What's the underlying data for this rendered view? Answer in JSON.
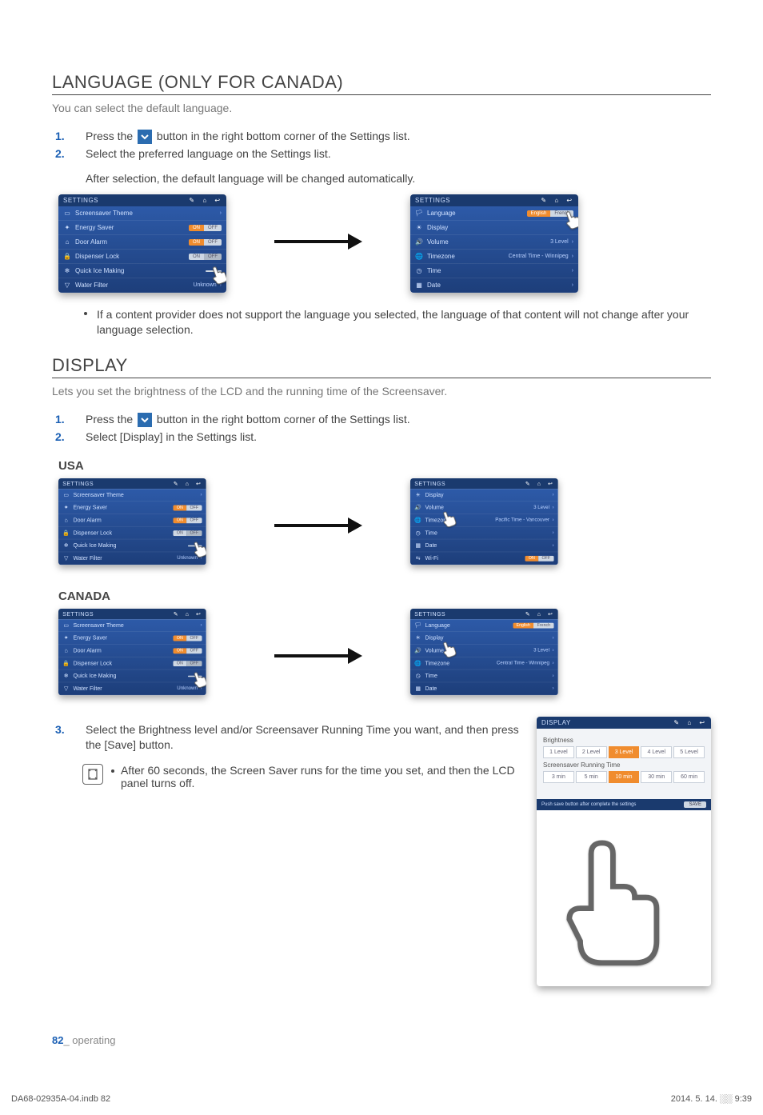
{
  "section1": {
    "title": "LANGUAGE (ONLY FOR CANADA)",
    "intro": "You can select the default language.",
    "step1_pre": "Press the",
    "step1_post": "button in the right bottom corner of the Settings list.",
    "step2": "Select the preferred language on the Settings list.",
    "step2_sub": "After selection, the default language will be changed automatically.",
    "note": "If a content provider does not support the language you selected, the language of that content will not change after your language selection."
  },
  "section2": {
    "title": "DISPLAY",
    "intro": "Lets you set the brightness of the LCD and the running time of the Screensaver.",
    "step1_pre": "Press the",
    "step1_post": "button in the right bottom corner of the Settings list.",
    "step2": "Select [Display] in the Settings list.",
    "region_usa": "USA",
    "region_canada": "CANADA",
    "step3": "Select the Brightness level and/or Screensaver Running Time you want, and then press the [Save] button.",
    "note3": "After 60 seconds, the Screen Saver runs for the time you set, and then the LCD panel turns off."
  },
  "panel_settings_a": {
    "title": "SETTINGS",
    "rows": [
      {
        "icon": "▭",
        "label": "Screensaver Theme",
        "control": "chev"
      },
      {
        "icon": "✦",
        "label": "Energy Saver",
        "control": "toggle_on"
      },
      {
        "icon": "⌂",
        "label": "Door Alarm",
        "control": "toggle_on"
      },
      {
        "icon": "🔒",
        "label": "Dispenser Lock",
        "control": "toggle_off"
      },
      {
        "icon": "❄",
        "label": "Quick Ice Making",
        "control": "toggle_blank"
      },
      {
        "icon": "▽",
        "label": "Water Filter",
        "control": "value",
        "value": "Unknown"
      }
    ]
  },
  "panel_settings_b": {
    "title": "SETTINGS",
    "rows": [
      {
        "icon": "🏳",
        "label": "Language",
        "control": "lang"
      },
      {
        "icon": "☀",
        "label": "Display",
        "control": "chev"
      },
      {
        "icon": "🔊",
        "label": "Volume",
        "control": "value",
        "value": "3 Level"
      },
      {
        "icon": "🌐",
        "label": "Timezone",
        "control": "value",
        "value": "Central Time - Winnipeg"
      },
      {
        "icon": "◷",
        "label": "Time",
        "control": "chev"
      },
      {
        "icon": "▦",
        "label": "Date",
        "control": "chev"
      }
    ]
  },
  "panel_settings_c": {
    "title": "SETTINGS",
    "rows": [
      {
        "icon": "☀",
        "label": "Display",
        "control": "chev"
      },
      {
        "icon": "🔊",
        "label": "Volume",
        "control": "value",
        "value": "3 Level"
      },
      {
        "icon": "🌐",
        "label": "Timezone",
        "control": "value",
        "value": "Pacific Time - Vancouver"
      },
      {
        "icon": "◷",
        "label": "Time",
        "control": "chev"
      },
      {
        "icon": "▦",
        "label": "Date",
        "control": "chev"
      },
      {
        "icon": "⇆",
        "label": "Wi-Fi",
        "control": "toggle_on"
      }
    ]
  },
  "panel_settings_d": {
    "title": "SETTINGS",
    "rows": [
      {
        "icon": "🏳",
        "label": "Language",
        "control": "lang"
      },
      {
        "icon": "☀",
        "label": "Display",
        "control": "chev"
      },
      {
        "icon": "🔊",
        "label": "Volume",
        "control": "value",
        "value": "3 Level"
      },
      {
        "icon": "🌐",
        "label": "Timezone",
        "control": "value",
        "value": "Central Time - Winnipeg"
      },
      {
        "icon": "◷",
        "label": "Time",
        "control": "chev"
      },
      {
        "icon": "▦",
        "label": "Date",
        "control": "chev"
      }
    ]
  },
  "display_panel": {
    "title": "DISPLAY",
    "brightness_label": "Brightness",
    "brightness_levels": [
      "1 Level",
      "2 Level",
      "3 Level",
      "4 Level",
      "5 Level"
    ],
    "brightness_selected": 2,
    "running_label": "Screensaver Running Time",
    "running_levels": [
      "3 min",
      "5 min",
      "10 min",
      "30 min",
      "60 min"
    ],
    "running_selected": 2,
    "footer_text": "Push save button after complete the settings",
    "save": "SAVE"
  },
  "lang_toggle": {
    "en": "English",
    "fr": "French"
  },
  "toggle": {
    "on": "ON",
    "off": "OFF"
  },
  "pagefoot": {
    "num": "82",
    "label": "_ operating"
  },
  "printfoot": {
    "left": "DA68-02935A-04.indb   82",
    "right": "2014. 5. 14.   ░░ 9:39"
  }
}
